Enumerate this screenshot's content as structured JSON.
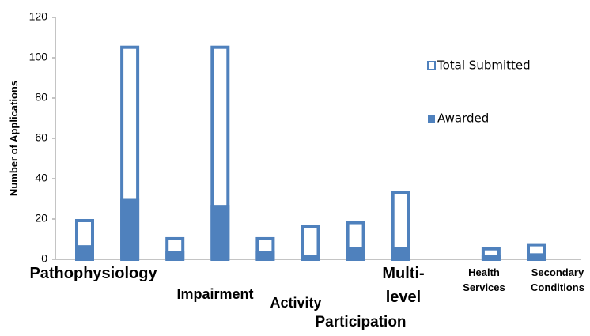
{
  "chart_data": {
    "type": "bar",
    "y_label": "Number of Applications",
    "categories": [
      "Pathophysiology",
      null,
      null,
      "Impairment",
      null,
      "Activity",
      "Participation",
      "Multi-\nlevel",
      null,
      "Health\nServices",
      "Secondary\nConditions"
    ],
    "series": [
      {
        "name": "Total Submitted",
        "color": "#4f81bd",
        "values": [
          20,
          106,
          11,
          106,
          11,
          17,
          19,
          34,
          null,
          6,
          8
        ]
      },
      {
        "name": "Awarded",
        "color": "#4f81bd",
        "values": [
          7,
          30,
          4,
          27,
          4,
          2,
          6,
          6,
          null,
          2,
          3
        ]
      }
    ],
    "ylim": [
      0,
      120
    ],
    "yticks": [
      0,
      20,
      40,
      60,
      80,
      100,
      120
    ]
  }
}
